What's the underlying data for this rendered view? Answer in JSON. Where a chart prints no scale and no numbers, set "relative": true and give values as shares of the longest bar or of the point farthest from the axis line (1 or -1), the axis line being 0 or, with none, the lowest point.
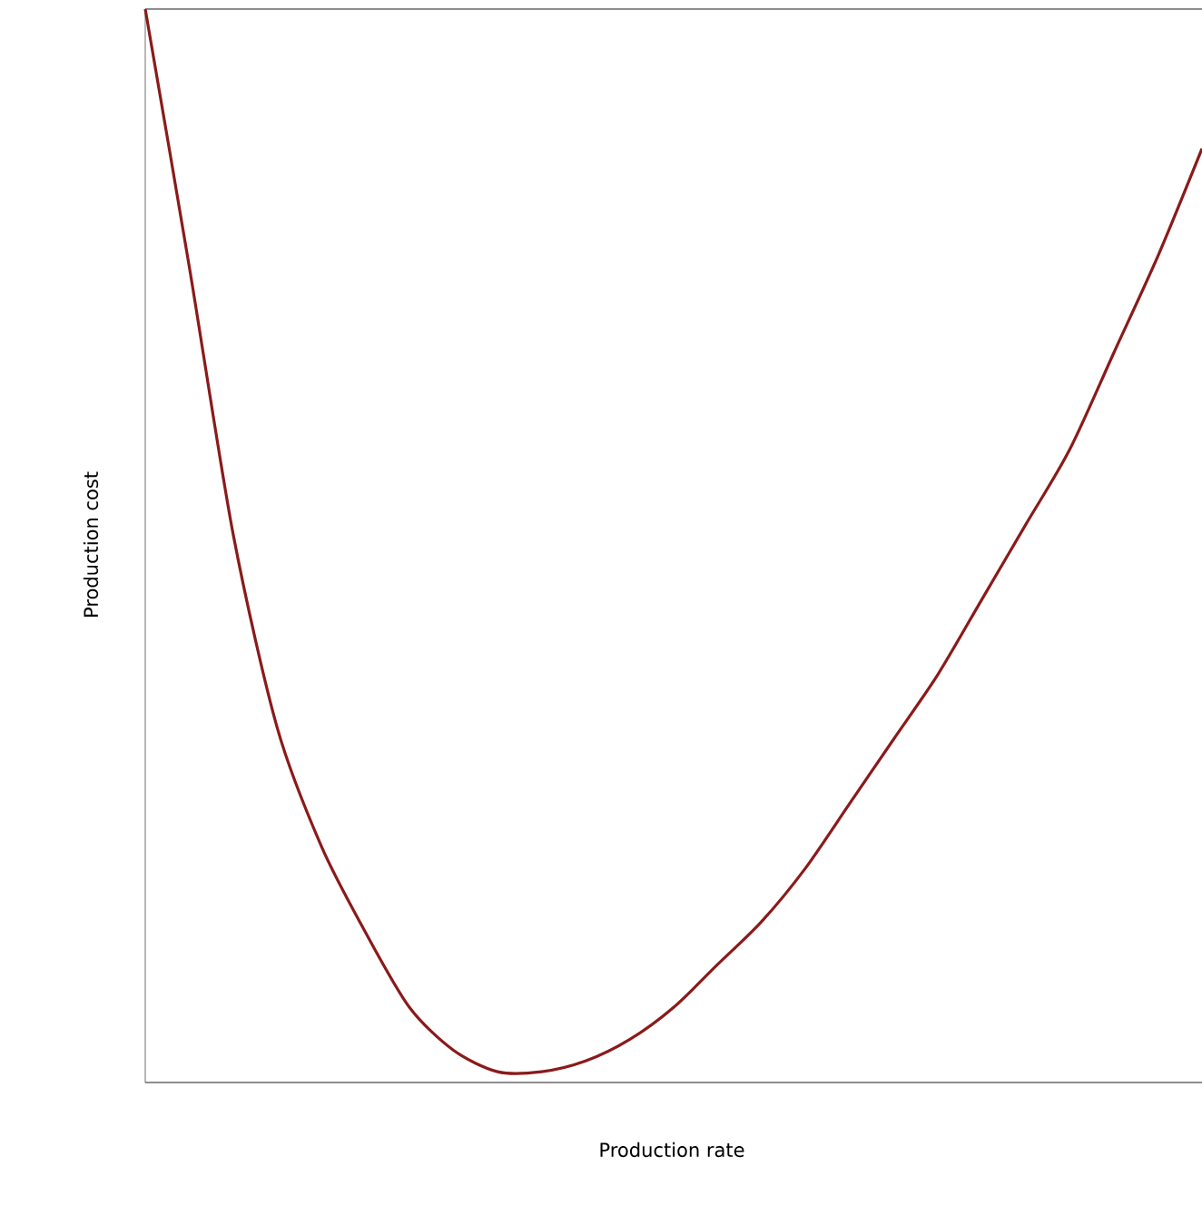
{
  "chart_data": {
    "type": "line",
    "relative": true,
    "xlabel": "Production rate",
    "ylabel": "Production cost",
    "categories": [
      null,
      null,
      null,
      null,
      null,
      null,
      null,
      null,
      null,
      null,
      null,
      null,
      null,
      null,
      null,
      null,
      null,
      null,
      null,
      null,
      null,
      null,
      null,
      null,
      null
    ],
    "series": [
      {
        "color": "#8b1a1a",
        "values": [
          1.0,
          0.76,
          0.51,
          0.33,
          0.22,
          0.14,
          0.07,
          0.03,
          0.01,
          0.01,
          0.02,
          0.04,
          0.07,
          0.11,
          0.15,
          0.2,
          0.26,
          0.32,
          0.38,
          0.45,
          0.52,
          0.59,
          0.68,
          0.77,
          0.87
        ]
      }
    ],
    "marker": "none",
    "line_style": "solid"
  }
}
